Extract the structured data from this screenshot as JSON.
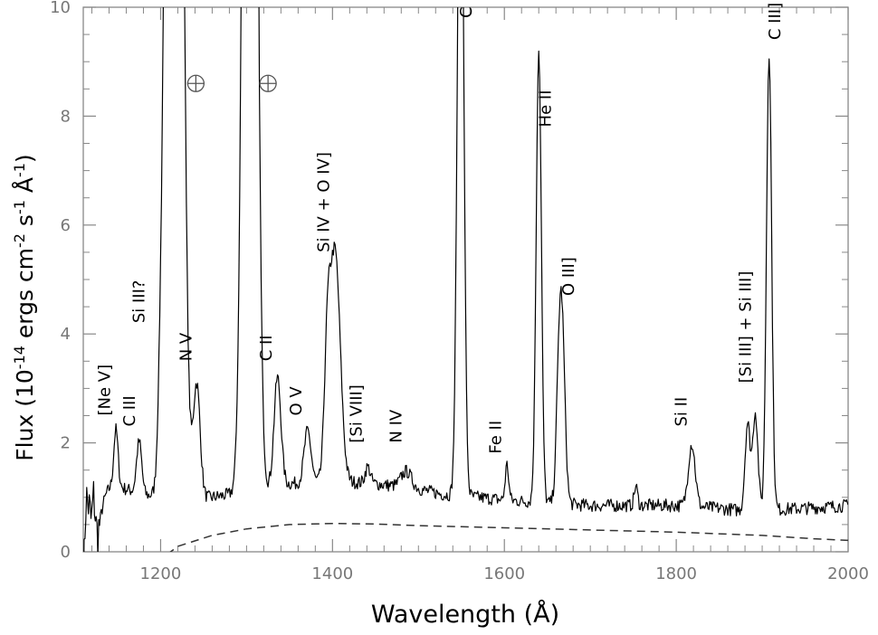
{
  "chart_data": {
    "type": "line",
    "xlabel": "Wavelength (Å)",
    "ylabel": {
      "pre": "Flux (10",
      "exp1": "-14",
      "mid1": " ergs cm",
      "exp2": "-2",
      "mid2": " s",
      "exp3": "-1",
      "mid3": " Å",
      "exp4": "-1",
      "post": ")"
    },
    "xlim": [
      1110,
      2000
    ],
    "ylim": [
      0,
      10
    ],
    "x_ticks": [
      1200,
      1400,
      1600,
      1800,
      2000
    ],
    "x_tick_labels": [
      "1200",
      "1400",
      "1600",
      "1800",
      "2000"
    ],
    "y_ticks": [
      0,
      2,
      4,
      6,
      8,
      10
    ],
    "y_tick_labels": [
      "0",
      "2",
      "4",
      "6",
      "8",
      "10"
    ],
    "grid": false,
    "series": [
      {
        "style": "solid",
        "continuum": [
          [
            1110,
            1.6
          ],
          [
            1125,
            1.4
          ],
          [
            1150,
            1.2
          ],
          [
            1180,
            1.05
          ],
          [
            1200,
            1.0
          ],
          [
            1230,
            0.95
          ],
          [
            1260,
            1.0
          ],
          [
            1300,
            1.1
          ],
          [
            1350,
            1.25
          ],
          [
            1400,
            1.3
          ],
          [
            1450,
            1.25
          ],
          [
            1500,
            1.15
          ],
          [
            1530,
            1.05
          ],
          [
            1570,
            1.0
          ],
          [
            1600,
            0.95
          ],
          [
            1650,
            0.9
          ],
          [
            1700,
            0.85
          ],
          [
            1750,
            0.85
          ],
          [
            1800,
            0.85
          ],
          [
            1850,
            0.8
          ],
          [
            1880,
            0.75
          ],
          [
            1950,
            0.8
          ],
          [
            2000,
            0.85
          ]
        ],
        "lines": [
          {
            "x": 1113,
            "amp": 2.0,
            "w": 2
          },
          {
            "x": 1117,
            "amp": 1.5,
            "w": 2
          },
          {
            "x": 1122,
            "amp": 1.3,
            "w": 2
          },
          {
            "x": 1148,
            "amp": 1.05,
            "w": 2.5
          },
          {
            "x": 1175,
            "amp": 0.95,
            "w": 3
          },
          {
            "x": 1200,
            "amp": 1.3,
            "w": 3
          },
          {
            "x": 1207,
            "amp": 2.2,
            "w": 3
          },
          {
            "x": 1216,
            "amp": 40,
            "w": 7
          },
          {
            "x": 1242,
            "amp": 2.1,
            "w": 4
          },
          {
            "x": 1304,
            "amp": 40,
            "w": 6
          },
          {
            "x": 1336,
            "amp": 2.0,
            "w": 4
          },
          {
            "x": 1371,
            "amp": 0.95,
            "w": 4
          },
          {
            "x": 1394,
            "amp": 2.0,
            "w": 3.5
          },
          {
            "x": 1403,
            "amp": 4.2,
            "w": 6
          },
          {
            "x": 1441,
            "amp": 0.3,
            "w": 3
          },
          {
            "x": 1486,
            "amp": 0.3,
            "w": 6
          },
          {
            "x": 1549,
            "amp": 14,
            "w": 3.5
          },
          {
            "x": 1603,
            "amp": 0.65,
            "w": 2
          },
          {
            "x": 1640,
            "amp": 8.3,
            "w": 3
          },
          {
            "x": 1663,
            "amp": 1.4,
            "w": 3
          },
          {
            "x": 1667,
            "amp": 3.2,
            "w": 3.5
          },
          {
            "x": 1753,
            "amp": 0.35,
            "w": 2
          },
          {
            "x": 1818,
            "amp": 1.15,
            "w": 4
          },
          {
            "x": 1883,
            "amp": 1.6,
            "w": 3
          },
          {
            "x": 1892,
            "amp": 1.8,
            "w": 3
          },
          {
            "x": 1908,
            "amp": 8.4,
            "w": 3
          }
        ],
        "noise": 0.12,
        "absorption": [
          {
            "x": 1110,
            "w": 12,
            "depth": 3
          }
        ]
      },
      {
        "style": "dashed",
        "points": [
          [
            1195,
            -0.2
          ],
          [
            1220,
            0.1
          ],
          [
            1260,
            0.3
          ],
          [
            1300,
            0.42
          ],
          [
            1350,
            0.5
          ],
          [
            1400,
            0.52
          ],
          [
            1450,
            0.51
          ],
          [
            1500,
            0.48
          ],
          [
            1550,
            0.46
          ],
          [
            1600,
            0.44
          ],
          [
            1700,
            0.4
          ],
          [
            1800,
            0.36
          ],
          [
            1900,
            0.3
          ],
          [
            1960,
            0.24
          ],
          [
            2000,
            0.21
          ]
        ]
      }
    ],
    "annotations": [
      {
        "text": "[Ne V]",
        "x": 1141,
        "y": 2.5,
        "rotation": -90
      },
      {
        "text": "C III",
        "x": 1170,
        "y": 2.3,
        "rotation": -90
      },
      {
        "text": "Si III?",
        "x": 1181,
        "y": 4.2,
        "rotation": -90
      },
      {
        "text": "N V",
        "x": 1236,
        "y": 3.5,
        "rotation": -90
      },
      {
        "text": "C II",
        "x": 1329,
        "y": 3.5,
        "rotation": -90
      },
      {
        "text": "O V",
        "x": 1364,
        "y": 2.5,
        "rotation": -90
      },
      {
        "text": "Si IV + O IV]",
        "x": 1396,
        "y": 5.5,
        "rotation": -90
      },
      {
        "text": "[Si VIII]",
        "x": 1434,
        "y": 2.0,
        "rotation": -90
      },
      {
        "text": "N IV",
        "x": 1480,
        "y": 2.0,
        "rotation": -90
      },
      {
        "text": "C IV",
        "x": 1562,
        "y": 9.8,
        "rotation": -90
      },
      {
        "text": "Fe II",
        "x": 1596,
        "y": 1.8,
        "rotation": -90
      },
      {
        "text": "He II",
        "x": 1654,
        "y": 7.8,
        "rotation": -90
      },
      {
        "text": "O III]",
        "x": 1681,
        "y": 4.7,
        "rotation": -90
      },
      {
        "text": "Si II",
        "x": 1812,
        "y": 2.3,
        "rotation": -90
      },
      {
        "text": "[Si III] + Si III]",
        "x": 1887,
        "y": 3.1,
        "rotation": -90
      },
      {
        "text": "C III]",
        "x": 1921,
        "y": 9.4,
        "rotation": -90
      }
    ],
    "earth_symbols": [
      {
        "x": 1241,
        "y": 8.6
      },
      {
        "x": 1325,
        "y": 8.6
      }
    ]
  }
}
